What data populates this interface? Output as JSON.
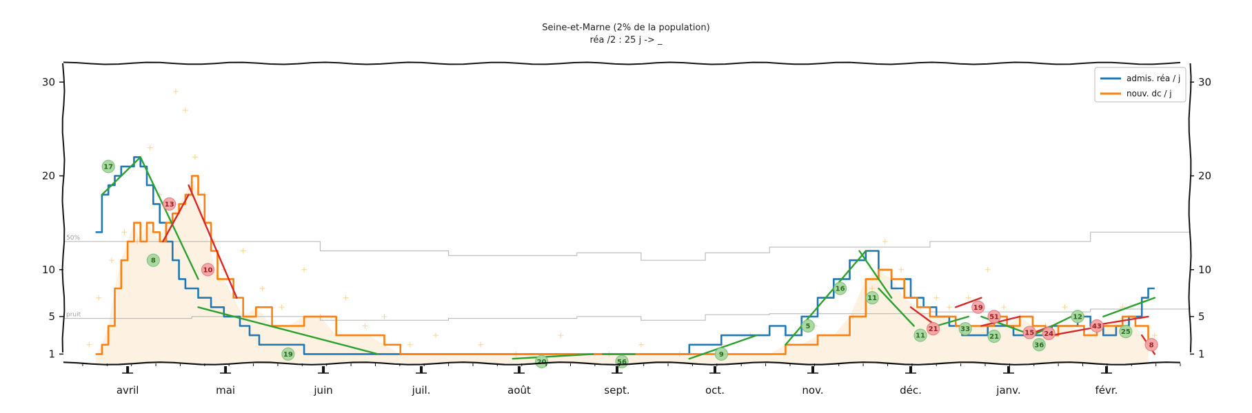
{
  "chart_data": {
    "type": "line",
    "title": "Seine-et-Marne (2% de la population)",
    "subtitle": "réa /2 : 25 j -> _",
    "x_labels": [
      "avril",
      "mai",
      "juin",
      "juil.",
      "août",
      "sept.",
      "oct.",
      "nov.",
      "déc.",
      "janv.",
      "févr."
    ],
    "y_ticks": [
      "1",
      "5",
      "10",
      "20",
      "30"
    ],
    "y_tick_values": [
      1,
      5,
      10,
      20,
      30
    ],
    "ylim": [
      0,
      32
    ],
    "xlim": [
      -20,
      331
    ],
    "grid": false,
    "legend_position": "top-right",
    "colors": {
      "rea": "#1f77b4",
      "dc": "#ff7f0e",
      "fit_up": "#2ca02c",
      "fit_down": "#d62728",
      "raw": "#ffb347",
      "fill": "#fdf0dc",
      "ref": "#b0b0b0",
      "frame": "#111111"
    },
    "series": [
      {
        "name": "admis. réa / j",
        "color": "#1f77b4",
        "x": [
          -10,
          -8,
          -6,
          -4,
          -2,
          0,
          2,
          4,
          6,
          8,
          10,
          12,
          14,
          16,
          18,
          20,
          22,
          24,
          26,
          28,
          30,
          32,
          35,
          38,
          41,
          44,
          47,
          50,
          55,
          60,
          65,
          70,
          75,
          80,
          85,
          90,
          95,
          100,
          105,
          110,
          115,
          120,
          125,
          130,
          135,
          140,
          145,
          150,
          155,
          160,
          165,
          170,
          175,
          180,
          185,
          190,
          195,
          200,
          205,
          210,
          215,
          220,
          225,
          230,
          234,
          238,
          242,
          244,
          248,
          252,
          256,
          260,
          264,
          268,
          272,
          276,
          280,
          284,
          288,
          292,
          296,
          300,
          304,
          308,
          312,
          314,
          316,
          318,
          320
        ],
        "y": [
          14,
          18,
          19,
          20,
          21,
          21,
          22,
          21,
          19,
          17,
          15,
          13,
          11,
          9,
          8,
          8,
          7,
          7,
          6,
          6,
          5,
          5,
          4,
          3,
          2,
          2,
          2,
          2,
          1,
          1,
          1,
          1,
          1,
          1,
          1,
          1,
          1,
          1,
          1,
          1,
          1,
          1,
          1,
          1,
          1,
          1,
          1,
          1,
          1,
          1,
          1,
          1,
          2,
          2,
          3,
          3,
          3,
          4,
          3,
          5,
          7,
          9,
          11,
          12,
          10,
          8,
          9,
          7,
          6,
          5,
          4,
          3,
          3,
          4,
          4,
          3,
          3,
          3,
          4,
          4,
          5,
          4,
          3,
          4,
          5,
          5,
          7,
          8,
          8
        ]
      },
      {
        "name": "nouv. dc / j",
        "color": "#ff7f0e",
        "x": [
          -10,
          -8,
          -6,
          -4,
          -2,
          0,
          2,
          4,
          6,
          8,
          10,
          12,
          14,
          16,
          18,
          20,
          22,
          24,
          26,
          28,
          30,
          33,
          36,
          40,
          45,
          50,
          55,
          60,
          65,
          70,
          75,
          80,
          85,
          90,
          95,
          100,
          110,
          120,
          130,
          140,
          150,
          160,
          170,
          180,
          190,
          200,
          205,
          210,
          215,
          220,
          225,
          230,
          234,
          238,
          242,
          246,
          250,
          254,
          258,
          262,
          266,
          270,
          274,
          278,
          282,
          286,
          290,
          294,
          298,
          302,
          306,
          310,
          314,
          318
        ],
        "y": [
          1,
          2,
          4,
          8,
          11,
          13,
          15,
          13,
          15,
          14,
          13,
          15,
          16,
          17,
          18,
          20,
          18,
          15,
          12,
          9,
          9,
          7,
          5,
          6,
          4,
          4,
          5,
          5,
          3,
          3,
          3,
          2,
          1,
          1,
          1,
          1,
          1,
          1,
          1,
          1,
          1,
          1,
          1,
          1,
          1,
          1,
          2,
          2,
          3,
          3,
          5,
          9,
          10,
          9,
          7,
          6,
          5,
          5,
          4,
          4,
          4,
          5,
          4,
          5,
          4,
          3,
          4,
          4,
          3,
          4,
          4,
          5,
          4,
          2
        ]
      }
    ],
    "fit_segments": [
      {
        "color": "#2ca02c",
        "x": [
          -8,
          4
        ],
        "y": [
          18,
          22
        ]
      },
      {
        "color": "#2ca02c",
        "x": [
          4,
          22
        ],
        "y": [
          22,
          9
        ]
      },
      {
        "color": "#d62728",
        "x": [
          11,
          19
        ],
        "y": [
          13,
          18
        ]
      },
      {
        "color": "#d62728",
        "x": [
          19,
          34
        ],
        "y": [
          19,
          7
        ]
      },
      {
        "color": "#2ca02c",
        "x": [
          22,
          78
        ],
        "y": [
          6,
          1
        ]
      },
      {
        "color": "#2ca02c",
        "x": [
          120,
          145
        ],
        "y": [
          0.5,
          1
        ]
      },
      {
        "color": "#2ca02c",
        "x": [
          148,
          158
        ],
        "y": [
          1,
          1
        ]
      },
      {
        "color": "#2ca02c",
        "x": [
          175,
          196
        ],
        "y": [
          0.5,
          3
        ]
      },
      {
        "color": "#2ca02c",
        "x": [
          205,
          230
        ],
        "y": [
          2,
          12
        ]
      },
      {
        "color": "#2ca02c",
        "x": [
          228,
          238
        ],
        "y": [
          12,
          7
        ]
      },
      {
        "color": "#2ca02c",
        "x": [
          234,
          245
        ],
        "y": [
          8,
          4
        ]
      },
      {
        "color": "#d62728",
        "x": [
          244,
          252
        ],
        "y": [
          6,
          4
        ]
      },
      {
        "color": "#2ca02c",
        "x": [
          252,
          262
        ],
        "y": [
          4,
          5
        ]
      },
      {
        "color": "#d62728",
        "x": [
          258,
          266
        ],
        "y": [
          6,
          7
        ]
      },
      {
        "color": "#d62728",
        "x": [
          266,
          278
        ],
        "y": [
          4,
          5
        ]
      },
      {
        "color": "#2ca02c",
        "x": [
          266,
          282
        ],
        "y": [
          5,
          3
        ]
      },
      {
        "color": "#d62728",
        "x": [
          280,
          288
        ],
        "y": [
          3,
          4
        ]
      },
      {
        "color": "#2ca02c",
        "x": [
          282,
          294
        ],
        "y": [
          3,
          5
        ]
      },
      {
        "color": "#d62728",
        "x": [
          288,
          304
        ],
        "y": [
          3,
          4
        ]
      },
      {
        "color": "#d62728",
        "x": [
          300,
          318
        ],
        "y": [
          4,
          5
        ]
      },
      {
        "color": "#2ca02c",
        "x": [
          304,
          320
        ],
        "y": [
          5,
          7
        ]
      },
      {
        "color": "#d62728",
        "x": [
          316,
          320
        ],
        "y": [
          3,
          1
        ]
      }
    ],
    "badges": [
      {
        "x": -6,
        "y": 21,
        "label": "17",
        "kind": "up"
      },
      {
        "x": 8,
        "y": 11,
        "label": "8",
        "kind": "up"
      },
      {
        "x": 13,
        "y": 17,
        "label": "13",
        "kind": "down"
      },
      {
        "x": 25,
        "y": 10,
        "label": "10",
        "kind": "down"
      },
      {
        "x": 50,
        "y": 1,
        "label": "19",
        "kind": "up"
      },
      {
        "x": 129,
        "y": 0.2,
        "label": "20",
        "kind": "up"
      },
      {
        "x": 154,
        "y": 0.2,
        "label": "56",
        "kind": "up"
      },
      {
        "x": 185,
        "y": 1,
        "label": "9",
        "kind": "up"
      },
      {
        "x": 212,
        "y": 4,
        "label": "5",
        "kind": "up"
      },
      {
        "x": 222,
        "y": 8,
        "label": "16",
        "kind": "up"
      },
      {
        "x": 232,
        "y": 7,
        "label": "11",
        "kind": "up"
      },
      {
        "x": 247,
        "y": 3,
        "label": "11",
        "kind": "up"
      },
      {
        "x": 251,
        "y": 3.7,
        "label": "21",
        "kind": "down"
      },
      {
        "x": 261,
        "y": 3.7,
        "label": "33",
        "kind": "up"
      },
      {
        "x": 265,
        "y": 6,
        "label": "19",
        "kind": "down"
      },
      {
        "x": 270,
        "y": 5,
        "label": "51",
        "kind": "down"
      },
      {
        "x": 270,
        "y": 2.9,
        "label": "21",
        "kind": "up"
      },
      {
        "x": 281,
        "y": 3.3,
        "label": "15",
        "kind": "down"
      },
      {
        "x": 284,
        "y": 2,
        "label": "36",
        "kind": "up"
      },
      {
        "x": 287,
        "y": 3.2,
        "label": "24",
        "kind": "down"
      },
      {
        "x": 296,
        "y": 5,
        "label": "12",
        "kind": "up"
      },
      {
        "x": 302,
        "y": 4,
        "label": "43",
        "kind": "down"
      },
      {
        "x": 311,
        "y": 3.4,
        "label": "25",
        "kind": "up"
      },
      {
        "x": 319,
        "y": 2,
        "label": "8",
        "kind": "down"
      }
    ],
    "ref_lines": [
      {
        "label": "50%",
        "x": [
          -20,
          20,
          60,
          100,
          140,
          160,
          180,
          200,
          250,
          300,
          331
        ],
        "y": [
          13,
          13,
          12,
          11.5,
          11.8,
          11,
          11.8,
          12.4,
          13,
          14,
          15
        ]
      },
      {
        "label": "pruit",
        "x": [
          -20,
          20,
          60,
          100,
          140,
          160,
          180,
          200,
          250,
          300,
          331
        ],
        "y": [
          4.8,
          5,
          4.6,
          4.8,
          5,
          4.6,
          5.2,
          5.3,
          5.5,
          5.8,
          6
        ]
      }
    ],
    "raw_points": {
      "x": [
        -12,
        -9,
        -5,
        -1,
        3,
        7,
        10,
        15,
        18,
        21,
        24,
        27,
        30,
        36,
        42,
        48,
        55,
        60,
        68,
        74,
        80,
        88,
        96,
        110,
        121,
        135,
        150,
        160,
        172,
        185,
        194,
        205,
        214,
        226,
        232,
        236,
        241,
        247,
        252,
        256,
        262,
        268,
        273,
        278,
        286,
        292,
        298,
        304,
        310,
        316,
        320
      ],
      "y": [
        2,
        7,
        11,
        14,
        13,
        23,
        18,
        29,
        27,
        22,
        18,
        13,
        10,
        12,
        8,
        6,
        10,
        5,
        7,
        4,
        5,
        2,
        3,
        2,
        1,
        3,
        1,
        2,
        1,
        2,
        3,
        3,
        4,
        5,
        8,
        13,
        10,
        6,
        7,
        6,
        7,
        10,
        6,
        5,
        4,
        6,
        5,
        4,
        6,
        5,
        3
      ]
    }
  }
}
